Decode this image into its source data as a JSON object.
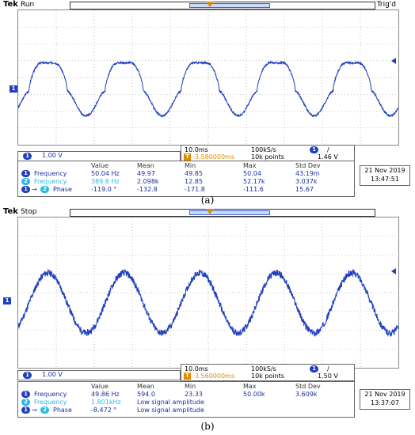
{
  "panels": [
    {
      "id": "a",
      "brand": "Tek",
      "state": "Run",
      "trigger_status": "Trig'd",
      "channel_marker": "1",
      "trigger_marker": "T",
      "ch1_scale": "1.00 V",
      "timebase": "10.0ms",
      "sample_rate": "100kS/s",
      "trigger_position": "-3.580000ms",
      "record_length": "10k points",
      "trigger_channel": "1",
      "trigger_slope": "/",
      "trigger_level": "1.46 V",
      "headers": [
        "Value",
        "Mean",
        "Min",
        "Max",
        "Std Dev"
      ],
      "measurements": [
        {
          "source": "1",
          "label": "Frequency",
          "value": "50.04 Hz",
          "mean": "49.97",
          "min": "49.85",
          "max": "50.04",
          "std": "43.19m"
        },
        {
          "source": "2",
          "label": "Frequency",
          "value": "389.6 Hz",
          "mean": "2.098k",
          "min": "12.85",
          "max": "52.17k",
          "std": "3.037k"
        },
        {
          "source": "1",
          "target": "2",
          "label": "Phase",
          "value": "-119.0 °",
          "mean": "-132.8",
          "min": "-171.8",
          "max": "-111.6",
          "std": "15.67"
        }
      ],
      "date": "21 Nov 2019",
      "time": "13:47:51",
      "caption": "(a)",
      "waveform": {
        "shape": "distorted",
        "periods": 5,
        "frequency_hz": 50.04
      }
    },
    {
      "id": "b",
      "brand": "Tek",
      "state": "Stop",
      "trigger_status": "",
      "channel_marker": "1",
      "trigger_marker": "T",
      "ch1_scale": "1.00 V",
      "timebase": "10.0ms",
      "sample_rate": "100kS/s",
      "trigger_position": "-3.560000ms",
      "record_length": "10k points",
      "trigger_channel": "1",
      "trigger_slope": "/",
      "trigger_level": "1.50 V",
      "headers": [
        "Value",
        "Mean",
        "Min",
        "Max",
        "Std Dev"
      ],
      "measurements": [
        {
          "source": "1",
          "label": "Frequency",
          "value": "49.86 Hz",
          "mean": "594.0",
          "min": "23.33",
          "max": "50.00k",
          "std": "3.609k"
        },
        {
          "source": "2",
          "label": "Frequency",
          "value": "1.801kHz",
          "mean": "Low signal amplitude",
          "min": "",
          "max": "",
          "std": ""
        },
        {
          "source": "1",
          "target": "2",
          "label": "Phase",
          "value": "-8.472 °",
          "mean": "Low signal amplitude",
          "min": "",
          "max": "",
          "std": ""
        }
      ],
      "date": "21 Nov 2019",
      "time": "13:37:07",
      "caption": "(b)",
      "waveform": {
        "shape": "noisy-sine",
        "periods": 5,
        "frequency_hz": 49.86
      }
    }
  ],
  "colors": {
    "trace": "#1f3fbf",
    "ch2": "#2ab8e6",
    "trigger": "#e08b00",
    "text": "#1c2e9c"
  }
}
